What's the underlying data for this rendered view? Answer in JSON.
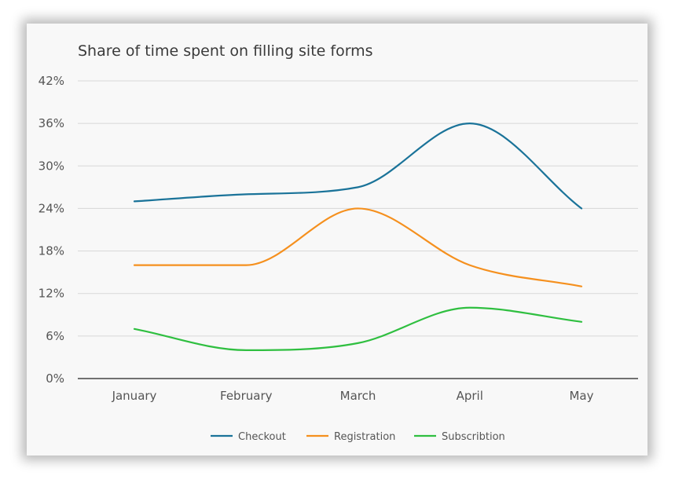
{
  "chart_data": {
    "type": "line",
    "title": "Share of time spent on filling site forms",
    "categories": [
      "January",
      "February",
      "March",
      "April",
      "May"
    ],
    "series": [
      {
        "name": "Checkout",
        "values": [
          25,
          26,
          27,
          36,
          24
        ],
        "color": "#1a7399"
      },
      {
        "name": "Registration",
        "values": [
          16,
          16,
          24,
          16,
          13
        ],
        "color": "#f5901e"
      },
      {
        "name": "Subscribtion",
        "values": [
          7,
          4,
          5,
          10,
          8
        ],
        "color": "#2fbf40"
      }
    ],
    "yticks": [
      "0%",
      "6%",
      "12%",
      "18%",
      "24%",
      "30%",
      "36%",
      "42%"
    ],
    "ylim": [
      0,
      42
    ],
    "grid": true,
    "legend_position": "bottom",
    "colors": {
      "grid": "#d7d7d7",
      "axis": "#444444",
      "background": "#f8f8f8"
    }
  }
}
